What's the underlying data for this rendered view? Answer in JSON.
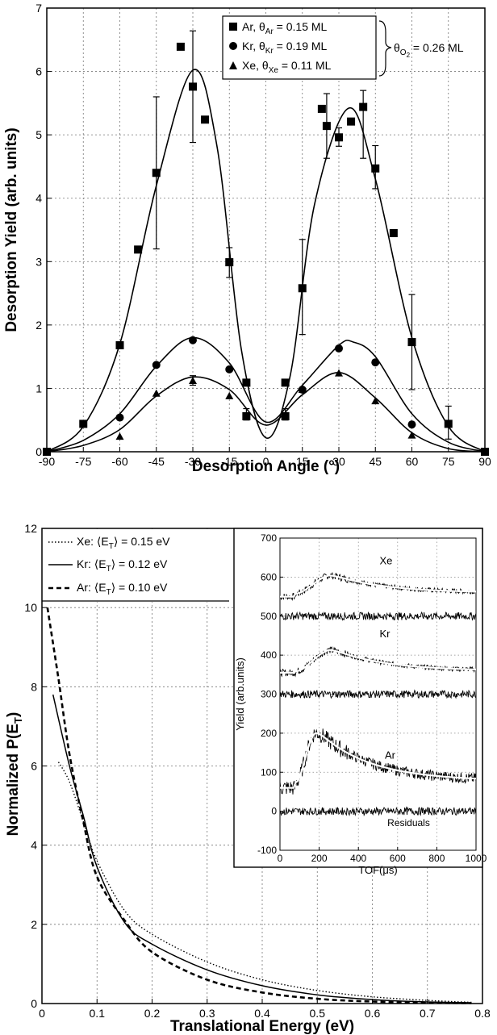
{
  "chart_data": [
    {
      "type": "scatter",
      "title": "",
      "xlabel": "Desorption Angle (°)",
      "ylabel": "Desorption Yield (arb. units)",
      "xlim": [
        -90,
        90
      ],
      "ylim": [
        0,
        7
      ],
      "xticks": [
        "-90",
        "-75",
        "-60",
        "-45",
        "-30",
        "-15",
        "0",
        "15",
        "30",
        "45",
        "60",
        "75",
        "90"
      ],
      "yticks": [
        "0",
        "1",
        "2",
        "3",
        "4",
        "5",
        "6",
        "7"
      ],
      "grid": true,
      "legend_position": "top-right",
      "legend_bracket_label": "θO2 = 0.26 ML",
      "series": [
        {
          "name": "Ar, θAr = 0.15 ML",
          "marker": "square",
          "points": [
            [
              -90,
              0
            ],
            [
              -75,
              0.44
            ],
            [
              -60,
              1.68
            ],
            [
              -52.5,
              3.19
            ],
            [
              -45,
              4.4
            ],
            [
              -35,
              6.39
            ],
            [
              -30,
              5.76
            ],
            [
              -25,
              5.24
            ],
            [
              -15,
              2.99
            ],
            [
              -8,
              1.09
            ],
            [
              -8,
              0.56
            ],
            [
              8,
              0.56
            ],
            [
              8,
              1.09
            ],
            [
              15,
              2.58
            ],
            [
              23,
              5.41
            ],
            [
              25,
              5.14
            ],
            [
              30,
              4.96
            ],
            [
              35,
              5.21
            ],
            [
              40,
              5.44
            ],
            [
              45,
              4.47
            ],
            [
              52.5,
              3.45
            ],
            [
              60,
              1.73
            ],
            [
              75,
              0.44
            ],
            [
              90,
              0
            ]
          ],
          "error_bars": [
            [
              -45,
              3.2,
              5.6
            ],
            [
              -30,
              4.88,
              6.64
            ],
            [
              -15,
              2.75,
              3.22
            ],
            [
              -8,
              0.5,
              0.68
            ],
            [
              8,
              0.5,
              0.68
            ],
            [
              15,
              1.85,
              3.35
            ],
            [
              25,
              4.63,
              5.65
            ],
            [
              30,
              4.82,
              5.11
            ],
            [
              40,
              4.63,
              5.7
            ],
            [
              45,
              4.15,
              4.83
            ],
            [
              60,
              0.98,
              2.48
            ],
            [
              75,
              0.2,
              0.72
            ]
          ],
          "fit": [
            [
              -90,
              0
            ],
            [
              -75,
              0.4
            ],
            [
              -60,
              1.7
            ],
            [
              -45,
              4.2
            ],
            [
              -30,
              6.02
            ],
            [
              -20,
              4.8
            ],
            [
              -10,
              1.6
            ],
            [
              0,
              0.22
            ],
            [
              10,
              1.2
            ],
            [
              20,
              3.9
            ],
            [
              34,
              5.42
            ],
            [
              45,
              4.3
            ],
            [
              60,
              1.8
            ],
            [
              75,
              0.4
            ],
            [
              90,
              0
            ]
          ]
        },
        {
          "name": "Kr, θKr = 0.19 ML",
          "marker": "circle",
          "points": [
            [
              -60,
              0.54
            ],
            [
              -45,
              1.37
            ],
            [
              -30,
              1.76
            ],
            [
              -15,
              1.3
            ],
            [
              15,
              0.98
            ],
            [
              30,
              1.63
            ],
            [
              45,
              1.41
            ],
            [
              60,
              0.43
            ]
          ],
          "fit": [
            [
              -90,
              0
            ],
            [
              -75,
              0.18
            ],
            [
              -60,
              0.6
            ],
            [
              -45,
              1.35
            ],
            [
              -30,
              1.8
            ],
            [
              -15,
              1.4
            ],
            [
              0,
              0.47
            ],
            [
              15,
              1.05
            ],
            [
              30,
              1.68
            ],
            [
              36,
              1.73
            ],
            [
              45,
              1.5
            ],
            [
              60,
              0.6
            ],
            [
              75,
              0.15
            ],
            [
              90,
              0
            ]
          ]
        },
        {
          "name": "Xe, θXe = 0.11 ML",
          "marker": "triangle",
          "points": [
            [
              -60,
              0.24
            ],
            [
              -45,
              0.92
            ],
            [
              -30,
              1.12
            ],
            [
              -15,
              0.88
            ],
            [
              15,
              0.98
            ],
            [
              30,
              1.24
            ],
            [
              45,
              0.8
            ],
            [
              60,
              0.26
            ]
          ],
          "error_bars": [
            [
              -30,
              1.05,
              1.2
            ]
          ],
          "fit": [
            [
              -90,
              0
            ],
            [
              -75,
              0.1
            ],
            [
              -60,
              0.35
            ],
            [
              -45,
              0.88
            ],
            [
              -30,
              1.18
            ],
            [
              -15,
              0.98
            ],
            [
              0,
              0.42
            ],
            [
              15,
              0.9
            ],
            [
              30,
              1.25
            ],
            [
              45,
              0.85
            ],
            [
              60,
              0.3
            ],
            [
              75,
              0.05
            ],
            [
              90,
              0
            ]
          ]
        }
      ]
    },
    {
      "type": "line",
      "title": "",
      "xlabel": "Translational Energy (eV)",
      "ylabel": "Normalized P(ET)",
      "xlim": [
        0,
        0.8
      ],
      "ylim": [
        0,
        12
      ],
      "xticks": [
        "0",
        "0.1",
        "0.2",
        "0.3",
        "0.4",
        "0.5",
        "0.6",
        "0.7",
        "0.8"
      ],
      "yticks": [
        "0",
        "2",
        "4",
        "6",
        "8",
        "10",
        "12"
      ],
      "grid": true,
      "legend_position": "top-left",
      "series": [
        {
          "name": "Xe: ⟨ET⟩ = 0.15 eV",
          "style": "dotted",
          "points": [
            [
              0.03,
              6.1
            ],
            [
              0.05,
              5.6
            ],
            [
              0.075,
              4.6
            ],
            [
              0.1,
              3.6
            ],
            [
              0.15,
              2.35
            ],
            [
              0.2,
              1.75
            ],
            [
              0.3,
              1.05
            ],
            [
              0.4,
              0.6
            ],
            [
              0.5,
              0.33
            ],
            [
              0.6,
              0.17
            ],
            [
              0.7,
              0.08
            ],
            [
              0.78,
              0.03
            ]
          ]
        },
        {
          "name": "Kr: ⟨ET⟩ = 0.12 eV",
          "style": "solid",
          "points": [
            [
              0.02,
              7.8
            ],
            [
              0.05,
              6.0
            ],
            [
              0.075,
              4.75
            ],
            [
              0.1,
              3.45
            ],
            [
              0.15,
              2.05
            ],
            [
              0.2,
              1.5
            ],
            [
              0.3,
              0.85
            ],
            [
              0.4,
              0.45
            ],
            [
              0.5,
              0.22
            ],
            [
              0.6,
              0.1
            ],
            [
              0.7,
              0.04
            ],
            [
              0.78,
              0.02
            ]
          ]
        },
        {
          "name": "Ar: ⟨ET⟩ = 0.10 eV",
          "style": "dashed",
          "points": [
            [
              0.01,
              10.0
            ],
            [
              0.03,
              8.2
            ],
            [
              0.05,
              6.3
            ],
            [
              0.075,
              4.6
            ],
            [
              0.1,
              3.2
            ],
            [
              0.15,
              2.1
            ],
            [
              0.2,
              1.3
            ],
            [
              0.3,
              0.6
            ],
            [
              0.4,
              0.28
            ],
            [
              0.5,
              0.12
            ],
            [
              0.6,
              0.05
            ],
            [
              0.7,
              0.02
            ],
            [
              0.78,
              0.01
            ]
          ]
        }
      ],
      "inset": {
        "type": "line",
        "xlabel": "TOF(μs)",
        "ylabel": "Yield (arb.units)",
        "xlim": [
          0,
          1000
        ],
        "ylim": [
          -100,
          700
        ],
        "xticks": [
          "0",
          "200",
          "400",
          "600",
          "800",
          "1000"
        ],
        "yticks": [
          "-100",
          "0",
          "100",
          "200",
          "300",
          "400",
          "500",
          "600",
          "700"
        ],
        "annotations": [
          "Xe",
          "Kr",
          "Ar",
          "Residuals"
        ],
        "series": [
          {
            "name": "Xe",
            "baseline": 550,
            "peak": 610,
            "peak_x": 250,
            "tail": 560
          },
          {
            "name": "Kr",
            "baseline": 355,
            "peak": 420,
            "peak_x": 250,
            "tail": 360
          },
          {
            "name": "Ar",
            "baseline": 60,
            "peak": 215,
            "peak_x": 175,
            "tail": 78
          },
          {
            "name": "Xe residuals",
            "baseline": 500
          },
          {
            "name": "Kr residuals",
            "baseline": 300
          },
          {
            "name": "Ar residuals",
            "baseline": 0
          }
        ]
      }
    }
  ]
}
